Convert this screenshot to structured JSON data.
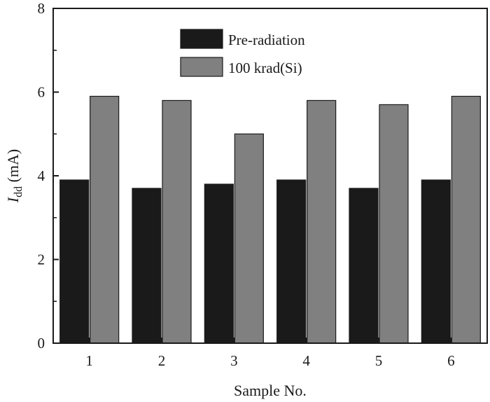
{
  "chart_data": {
    "type": "bar",
    "xlabel": "Sample No.",
    "ylabel_main": "I",
    "ylabel_sub": "dd",
    "ylabel_unit": " (mA)",
    "ylim": [
      0,
      8
    ],
    "yticks": [
      "0",
      "2",
      "4",
      "6",
      "8"
    ],
    "categories": [
      "1",
      "2",
      "3",
      "4",
      "5",
      "6"
    ],
    "series": [
      {
        "name": "Pre-radiation",
        "color": "#1a1a1a",
        "values": [
          3.9,
          3.7,
          3.8,
          3.9,
          3.7,
          3.9
        ]
      },
      {
        "name": "100 krad(Si)",
        "color": "#808080",
        "values": [
          5.9,
          5.8,
          5.0,
          5.8,
          5.7,
          5.9
        ]
      }
    ],
    "legend_position": "top-center",
    "grid": false
  }
}
